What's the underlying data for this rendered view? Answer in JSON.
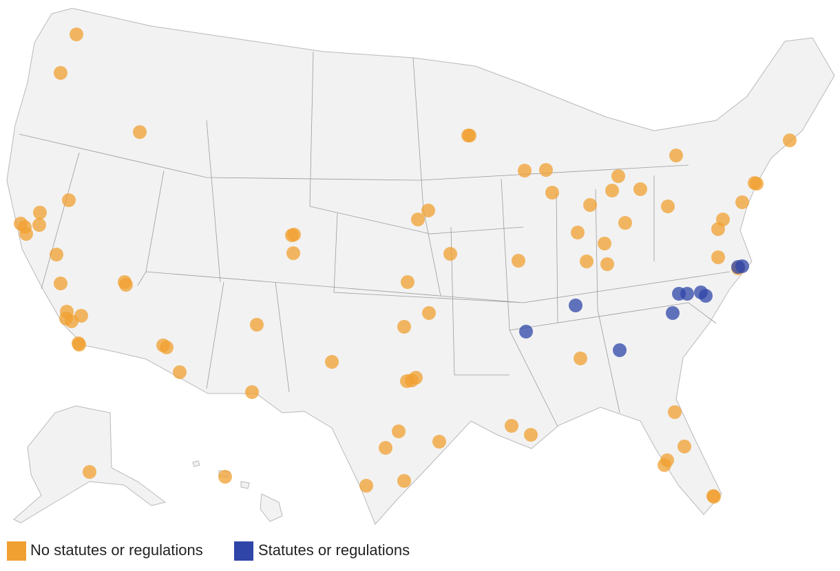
{
  "legend": {
    "items": [
      {
        "label": "No statutes or regulations",
        "color": "#f0a030"
      },
      {
        "label": "Statutes or regulations",
        "color": "#2f45a8"
      }
    ]
  }
}
